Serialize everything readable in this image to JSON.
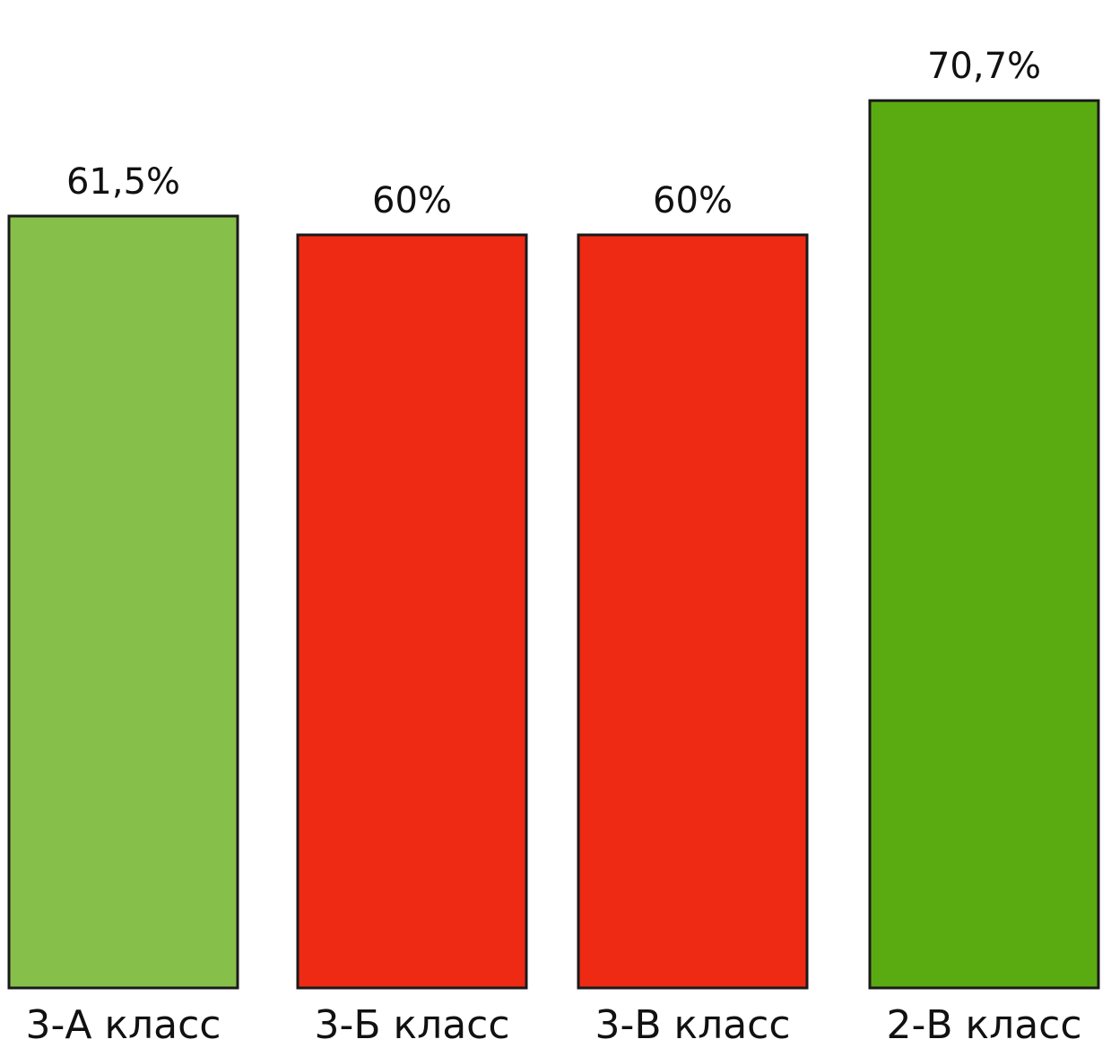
{
  "chart_data": {
    "type": "bar",
    "categories": [
      "3-А класс",
      "3-Б класс",
      "3-В класс",
      "2-В класс"
    ],
    "values": [
      61.5,
      60,
      60,
      70.7
    ],
    "value_labels": [
      "61,5%",
      "60%",
      "60%",
      "70,7%"
    ],
    "colors": [
      "#86c04a",
      "#ee2a14",
      "#ee2a14",
      "#5aab12"
    ],
    "grid": false,
    "legend": "none"
  }
}
